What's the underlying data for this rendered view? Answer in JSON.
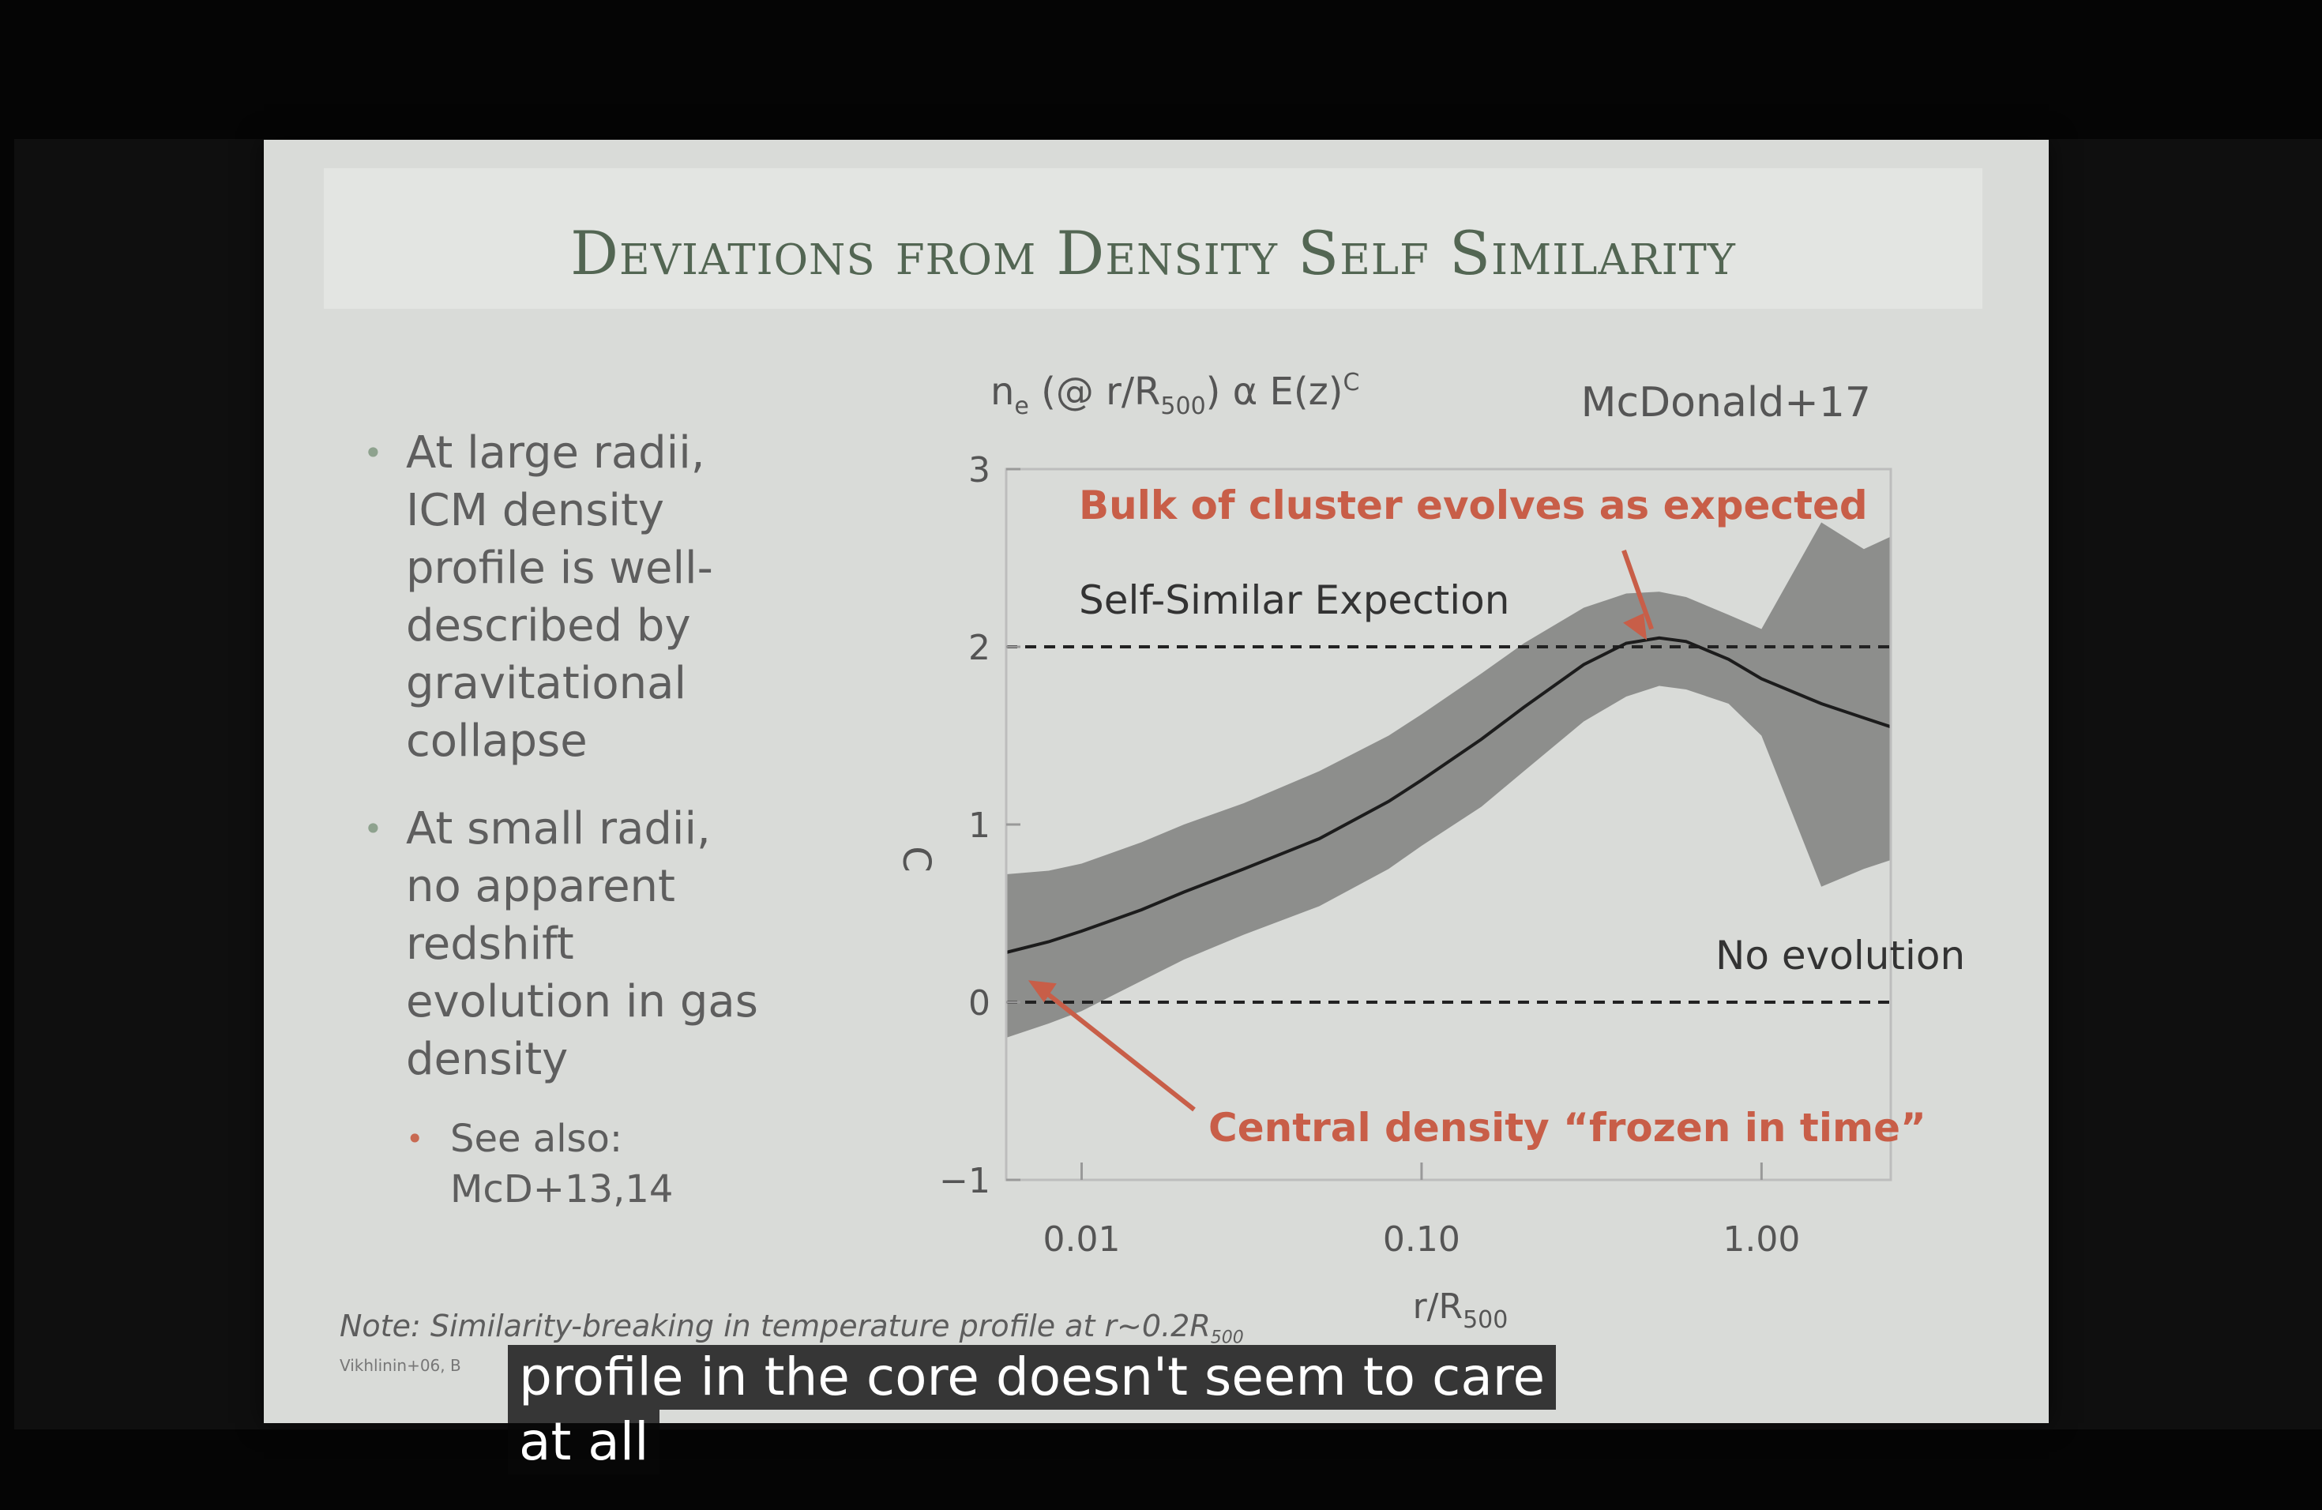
{
  "slide": {
    "title": "Deviations from Density Self Similarity",
    "bullets": [
      "At large radii, ICM density profile is well-described by gravitational collapse",
      "At small radii, no apparent redshift evolution in gas density"
    ],
    "subbullet": "See also: McD+13,14",
    "note": "Note: Similarity-breaking in temperature profile at r~0.2R",
    "note_sub": "500",
    "ref": "Vikhlinin+06, B"
  },
  "caption": {
    "line1": "profile in the core doesn't seem to care",
    "line2": "at all"
  },
  "chart_data": {
    "type": "line",
    "title": "n",
    "title_sub": "e",
    "title_rest": " (@ r/R",
    "title_sub2": "500",
    "title_end": ") α E(z)",
    "title_sup": "C",
    "source": "McDonald+17",
    "ylabel": "C",
    "xlabel": "r/R",
    "xlabel_sub": "500",
    "xscale": "log",
    "xlim": [
      0.006,
      2.4
    ],
    "ylim": [
      -1,
      3
    ],
    "xticks": [
      0.01,
      0.1,
      1.0
    ],
    "xtick_labels": [
      "0.01",
      "0.10",
      "1.00"
    ],
    "yticks": [
      -1,
      0,
      1,
      2,
      3
    ],
    "ytick_labels": [
      "−1",
      "0",
      "1",
      "2",
      "3"
    ],
    "reference_lines": [
      {
        "y": 2,
        "label": "Self-Similar Expection"
      },
      {
        "y": 0,
        "label": "No evolution"
      }
    ],
    "annotations": [
      {
        "text": "Bulk of cluster evolves as expected",
        "color": "#c85e48",
        "points_to": [
          0.45,
          2.02
        ]
      },
      {
        "text": "Central density “frozen in time”",
        "color": "#c85e48",
        "points_to": [
          0.0066,
          0.15
        ]
      }
    ],
    "series": [
      {
        "x": [
          0.006,
          0.008,
          0.01,
          0.015,
          0.02,
          0.03,
          0.05,
          0.08,
          0.1,
          0.15,
          0.2,
          0.3,
          0.4,
          0.5,
          0.6,
          0.8,
          1.0,
          1.5,
          2.0,
          2.4
        ],
        "values": [
          0.28,
          0.34,
          0.4,
          0.52,
          0.62,
          0.75,
          0.92,
          1.13,
          1.25,
          1.48,
          1.66,
          1.9,
          2.02,
          2.05,
          2.03,
          1.93,
          1.82,
          1.68,
          1.6,
          1.55
        ],
        "upper": [
          0.72,
          0.74,
          0.78,
          0.9,
          1.0,
          1.12,
          1.3,
          1.5,
          1.62,
          1.85,
          2.02,
          2.22,
          2.3,
          2.31,
          2.28,
          2.18,
          2.1,
          2.7,
          2.55,
          2.62
        ],
        "lower": [
          -0.2,
          -0.12,
          -0.05,
          0.12,
          0.24,
          0.38,
          0.54,
          0.75,
          0.88,
          1.1,
          1.3,
          1.58,
          1.72,
          1.78,
          1.76,
          1.68,
          1.5,
          0.65,
          0.75,
          0.8
        ]
      }
    ]
  }
}
